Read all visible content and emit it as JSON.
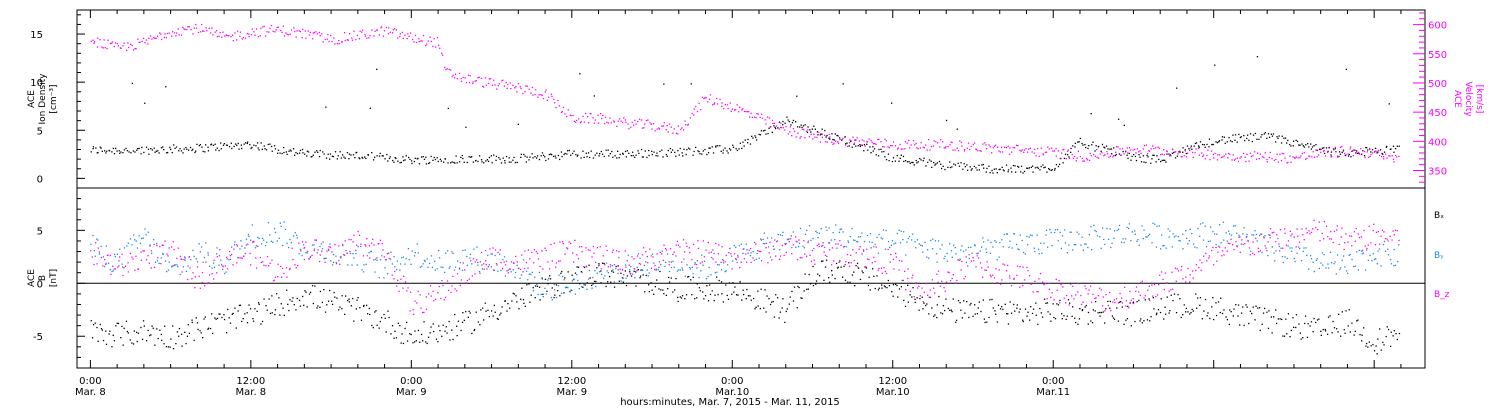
{
  "chart_data": [
    {
      "type": "scatter",
      "panel": "plasma",
      "ylabel": [
        "ACE",
        "Ion Density",
        "[cm⁻³]"
      ],
      "ylim": [
        -1,
        17.5
      ],
      "yticks": [
        0,
        5,
        10,
        15
      ],
      "y2label": [
        "ACE",
        "Velocity",
        "[km/s]"
      ],
      "y2lim": [
        320,
        625
      ],
      "y2ticks": [
        350,
        400,
        450,
        500,
        550,
        600
      ],
      "x_range_hours": [
        -1.0,
        99.8
      ],
      "series": [
        {
          "axis": "left",
          "color": "#000000",
          "x": [
            0,
            4,
            8,
            12,
            16,
            20,
            24,
            28,
            32,
            36,
            40,
            44,
            48,
            52,
            56,
            60,
            64,
            68,
            70,
            72,
            74,
            76,
            78,
            80,
            84,
            88,
            92,
            94,
            96,
            98
          ],
          "y": [
            3.0,
            3.0,
            3.2,
            3.6,
            2.6,
            2.4,
            2.0,
            2.1,
            2.1,
            2.6,
            2.6,
            2.8,
            3.1,
            6.0,
            4.2,
            2.2,
            1.4,
            1.0,
            1.0,
            1.2,
            3.8,
            3.0,
            2.2,
            2.0,
            4.0,
            4.4,
            3.0,
            2.5,
            3.0,
            3.0
          ]
        },
        {
          "axis": "right",
          "color": "#ff00ff",
          "x": [
            0,
            2,
            4,
            6,
            8,
            10,
            12,
            14,
            16,
            18,
            20,
            22,
            24,
            26,
            26.5,
            28,
            30,
            32,
            34,
            36,
            38,
            40,
            42,
            44,
            46,
            48,
            50,
            52,
            54,
            56,
            58,
            60,
            62,
            64,
            66,
            68,
            70,
            72,
            74,
            76,
            78,
            80,
            82,
            84,
            86,
            88,
            90,
            92,
            94,
            96,
            97,
            98
          ],
          "y": [
            575,
            560,
            570,
            590,
            595,
            578,
            588,
            592,
            585,
            575,
            582,
            590,
            578,
            570,
            520,
            508,
            500,
            492,
            482,
            440,
            440,
            432,
            428,
            420,
            475,
            460,
            440,
            420,
            410,
            402,
            400,
            395,
            395,
            395,
            392,
            388,
            385,
            382,
            375,
            380,
            388,
            385,
            382,
            378,
            375,
            375,
            372,
            380,
            385,
            380,
            370,
            378
          ]
        }
      ]
    },
    {
      "type": "scatter",
      "panel": "magnetic-field",
      "ylabel": [
        "ACE",
        "B",
        "[nT]"
      ],
      "ylim": [
        -8,
        9
      ],
      "yticks": [
        -5,
        0,
        5
      ],
      "x_range_hours": [
        -1.0,
        99.8
      ],
      "series": [
        {
          "name": "Bₓ",
          "color": "#000000",
          "x": [
            0,
            2,
            4,
            6,
            8,
            10,
            12,
            14,
            16,
            18,
            20,
            22,
            24,
            26,
            28,
            30,
            32,
            34,
            36,
            38,
            40,
            42,
            44,
            46,
            48,
            50,
            52,
            54,
            56,
            58,
            60,
            62,
            64,
            66,
            68,
            70,
            72,
            74,
            76,
            78,
            80,
            82,
            84,
            86,
            88,
            90,
            92,
            94,
            96,
            98
          ],
          "y": [
            -4.5,
            -4.8,
            -4.5,
            -5.0,
            -4.2,
            -3.5,
            -3.0,
            -2.0,
            -1.0,
            -1.8,
            -2.5,
            -3.5,
            -5.0,
            -4.5,
            -3.8,
            -2.5,
            -1.5,
            -0.5,
            0.5,
            1.0,
            0.5,
            0.2,
            -0.5,
            -0.5,
            -0.5,
            -1.5,
            -2.5,
            0.8,
            1.5,
            0.5,
            -0.5,
            -1.5,
            -2.5,
            -2.8,
            -2.5,
            -2.8,
            -2.5,
            -2.8,
            -2.5,
            -2.8,
            -2.2,
            -2.0,
            -2.2,
            -3.0,
            -3.5,
            -4.0,
            -4.5,
            -3.5,
            -5.5,
            -4.5
          ]
        },
        {
          "name": "Bᵧ",
          "color": "#1e88e5",
          "x": [
            0,
            2,
            4,
            6,
            8,
            10,
            12,
            14,
            16,
            18,
            20,
            22,
            24,
            26,
            28,
            30,
            32,
            34,
            36,
            38,
            40,
            42,
            44,
            46,
            48,
            50,
            52,
            54,
            56,
            58,
            60,
            62,
            64,
            66,
            68,
            70,
            72,
            74,
            76,
            78,
            80,
            82,
            84,
            86,
            88,
            90,
            92,
            94,
            96,
            98
          ],
          "y": [
            3.5,
            2.0,
            4.5,
            1.0,
            3.0,
            2.0,
            4.5,
            5.0,
            3.5,
            3.0,
            2.5,
            1.5,
            3.0,
            2.0,
            2.5,
            2.2,
            1.5,
            -0.5,
            0.0,
            1.0,
            1.5,
            2.0,
            2.0,
            1.5,
            2.5,
            3.5,
            4.0,
            4.5,
            4.5,
            4.0,
            4.0,
            3.5,
            3.0,
            3.0,
            3.5,
            3.8,
            4.0,
            4.2,
            4.5,
            4.8,
            4.5,
            4.5,
            4.8,
            4.5,
            3.5,
            2.5,
            2.0,
            1.5,
            3.0,
            2.5
          ]
        },
        {
          "name": "B_z",
          "color": "#ff00ff",
          "x": [
            0,
            2,
            4,
            6,
            8,
            10,
            12,
            14,
            16,
            18,
            20,
            22,
            24,
            26,
            28,
            30,
            32,
            34,
            36,
            38,
            40,
            42,
            44,
            46,
            48,
            50,
            52,
            54,
            56,
            58,
            60,
            62,
            64,
            66,
            68,
            70,
            72,
            74,
            76,
            78,
            80,
            82,
            84,
            86,
            88,
            90,
            92,
            94,
            96,
            98
          ],
          "y": [
            3.0,
            1.5,
            2.5,
            3.0,
            0.5,
            2.5,
            3.0,
            1.0,
            3.5,
            2.5,
            4.0,
            3.0,
            -2.0,
            -1.0,
            1.0,
            2.5,
            2.0,
            2.5,
            3.0,
            2.5,
            2.0,
            2.5,
            3.0,
            3.0,
            2.5,
            3.0,
            3.5,
            3.0,
            3.0,
            2.5,
            2.0,
            -1.0,
            0.5,
            2.0,
            1.0,
            0.5,
            -0.5,
            -1.0,
            -1.5,
            -1.0,
            0.0,
            1.0,
            2.5,
            3.5,
            4.0,
            4.5,
            5.0,
            4.0,
            4.5,
            4.5
          ]
        }
      ]
    }
  ],
  "time_axis": {
    "label": "hours:minutes, Mar. 7, 2015 - Mar. 11, 2015",
    "ticks": [
      {
        "hours": 0,
        "time": "0:00",
        "date": "Mar. 8"
      },
      {
        "hours": 12,
        "time": "12:00",
        "date": "Mar. 8"
      },
      {
        "hours": 24,
        "time": "0:00",
        "date": "Mar. 9"
      },
      {
        "hours": 36,
        "time": "12:00",
        "date": "Mar. 9"
      },
      {
        "hours": 48,
        "time": "0:00",
        "date": "Mar.10"
      },
      {
        "hours": 60,
        "time": "12:00",
        "date": "Mar.10"
      },
      {
        "hours": 72,
        "time": "0:00",
        "date": "Mar.11"
      }
    ]
  }
}
